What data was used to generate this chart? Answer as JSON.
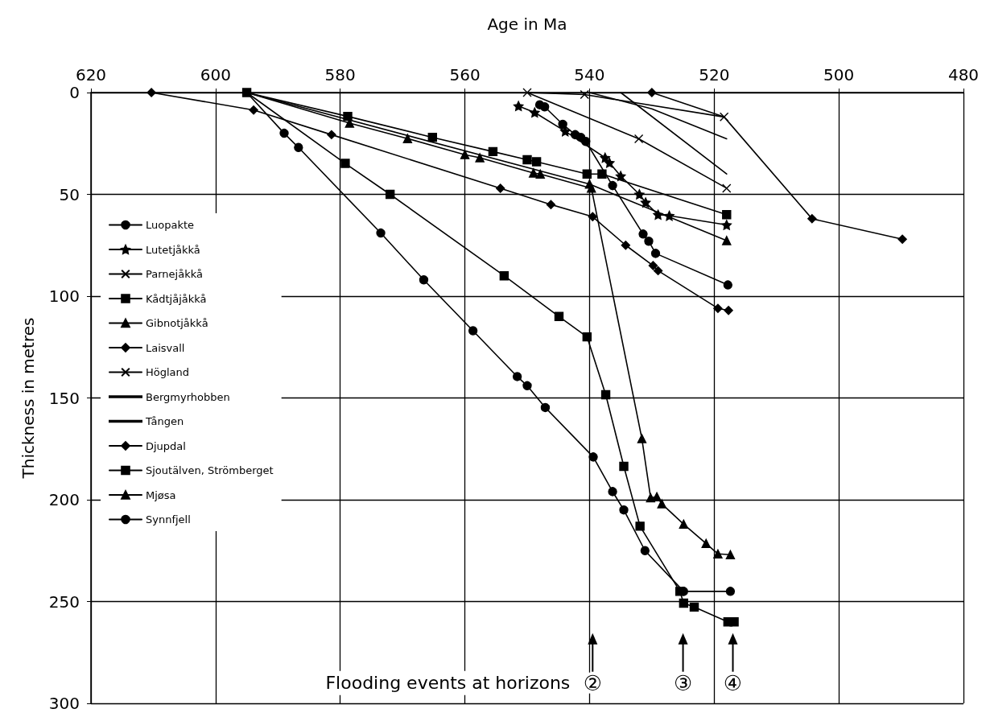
{
  "chart_data": {
    "type": "line",
    "xlabel": "Age in Ma",
    "ylabel": "Thickness in metres",
    "xlim": [
      620,
      480
    ],
    "xticks": [
      620,
      600,
      580,
      560,
      540,
      520,
      500,
      480
    ],
    "ylim": [
      300,
      0
    ],
    "yticks": [
      0,
      50,
      100,
      150,
      200,
      250,
      300
    ],
    "grid": true,
    "legend": "left",
    "annotations": [
      "Flooding events at horizons",
      {
        "text": "②",
        "x": 539.5,
        "y": 290
      },
      {
        "text": "③",
        "x": 525,
        "y": 290
      },
      {
        "text": "④",
        "x": 517,
        "y": 290
      }
    ],
    "series": [
      {
        "name": "Luopakte",
        "color": "#000000",
        "marker": "circle",
        "x": [
          548,
          547.2,
          544.3,
          542.3,
          541.4,
          540.6,
          536.3,
          531.4,
          530.5,
          529.4,
          517.8
        ],
        "values": [
          6,
          7,
          15.6,
          20.7,
          22,
          24,
          45.7,
          69.5,
          73,
          79,
          94.5
        ]
      },
      {
        "name": "Lutetjåkkå",
        "color": "#000000",
        "marker": "star",
        "x": [
          551.4,
          548.8,
          543.9,
          537.5,
          536.8,
          535,
          532,
          531,
          529,
          527.2,
          518
        ],
        "values": [
          6.6,
          9.8,
          19,
          32,
          34.5,
          41,
          50,
          54,
          60,
          60.5,
          65
        ]
      },
      {
        "name": "Parnejåkkå",
        "color": "#000000",
        "marker": "cross",
        "x": [
          550,
          540.8,
          518.4
        ],
        "values": [
          0,
          1,
          12
        ]
      },
      {
        "name": "Kådtjåjåkkå",
        "color": "#000000",
        "marker": "square",
        "x": [
          595,
          578.8,
          565.2,
          555.5,
          550,
          548.5,
          540.4,
          538,
          518
        ],
        "values": [
          0,
          11.7,
          22,
          29,
          33,
          34,
          40,
          40,
          60
        ]
      },
      {
        "name": "Gibnotjåkkå",
        "color": "#000000",
        "marker": "triangle",
        "x": [
          595,
          540,
          518
        ],
        "values": [
          0,
          45,
          72.7
        ]
      },
      {
        "name": "Laisvall",
        "color": "#000000",
        "marker": "diamond",
        "x": [
          610.3,
          593.9,
          581.4,
          554.3,
          546.2,
          539.5,
          534.2,
          529.8,
          529,
          519.4,
          517.7
        ],
        "values": [
          0,
          8.6,
          20.7,
          47,
          55,
          61,
          75,
          85,
          87.5,
          106,
          107
        ]
      },
      {
        "name": "Högland",
        "color": "#000000",
        "marker": "cross",
        "x": [
          550,
          532.1,
          518
        ],
        "values": [
          0,
          22.7,
          47
        ]
      },
      {
        "name": "Bergmyrhobben",
        "color": "#000000",
        "marker": "none",
        "x": [
          535,
          518
        ],
        "values": [
          0,
          40
        ]
      },
      {
        "name": "Tången",
        "color": "#000000",
        "marker": "none",
        "x": [
          540,
          530,
          518
        ],
        "values": [
          0,
          8,
          22.7
        ]
      },
      {
        "name": "Djupdal",
        "color": "#000000",
        "marker": "diamond",
        "x": [
          530,
          518.4,
          504.3,
          489.8
        ],
        "values": [
          0,
          12,
          62,
          72
        ]
      },
      {
        "name": "Sjoutälven, Strömberget",
        "color": "#000000",
        "marker": "square",
        "x": [
          595,
          579.2,
          572,
          553.7,
          544.9,
          540.4,
          537.4,
          534.5,
          531.9,
          525.5,
          524.9,
          523.2,
          517.8,
          516.8
        ],
        "values": [
          0,
          34.8,
          50,
          90,
          110,
          120,
          148.4,
          183.6,
          213,
          245,
          250.8,
          252.7,
          260,
          260
        ]
      },
      {
        "name": "Mjøsa",
        "color": "#000000",
        "marker": "triangle",
        "x": [
          595,
          578.5,
          569.2,
          560,
          557.6,
          549,
          547.9,
          539.7,
          531.6,
          530.2,
          529.2,
          528.4,
          524.9,
          521.3,
          519.4,
          517.4
        ],
        "values": [
          0,
          15,
          22.6,
          30.5,
          32,
          39.5,
          40,
          47,
          170,
          199,
          198.5,
          202,
          212,
          221.5,
          226.6,
          227
        ]
      },
      {
        "name": "Synnfjell",
        "color": "#000000",
        "marker": "circle",
        "x": [
          595,
          589,
          586.7,
          573.5,
          566.6,
          558.7,
          551.6,
          550,
          547.1,
          539.4,
          536.3,
          534.5,
          531.1,
          524.9,
          517.4
        ],
        "values": [
          0,
          20,
          27,
          69,
          92,
          117,
          139.5,
          144,
          154.7,
          179,
          196,
          205,
          225,
          245,
          245
        ]
      }
    ]
  }
}
